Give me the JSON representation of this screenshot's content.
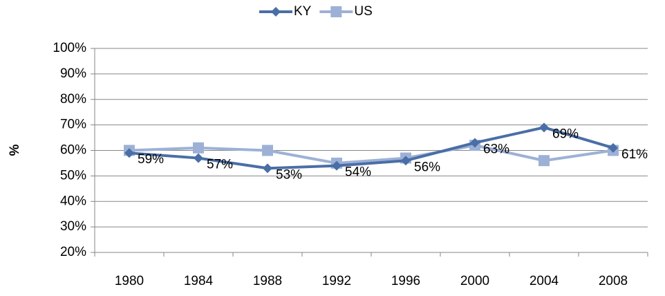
{
  "chart_data": {
    "type": "line",
    "y_label": "%",
    "categories": [
      "1980",
      "1984",
      "1988",
      "1992",
      "1996",
      "2000",
      "2004",
      "2008"
    ],
    "series": [
      {
        "name": "KY",
        "color": "#4a6ea6",
        "marker": "diamond",
        "values": [
          59,
          57,
          53,
          54,
          56,
          63,
          69,
          61
        ],
        "value_labels": [
          "59%",
          "57%",
          "53%",
          "54%",
          "56%",
          "63%",
          "69%",
          "61%"
        ]
      },
      {
        "name": "US",
        "color": "#9db1d6",
        "marker": "square",
        "values": [
          60,
          61,
          60,
          55,
          57,
          62,
          56,
          60
        ]
      }
    ],
    "ylim": [
      20,
      100
    ],
    "yticks": [
      {
        "value": 20,
        "label": "20%"
      },
      {
        "value": 30,
        "label": "30%"
      },
      {
        "value": 40,
        "label": "40%"
      },
      {
        "value": 50,
        "label": "50%"
      },
      {
        "value": 60,
        "label": "60%"
      },
      {
        "value": 70,
        "label": "70%"
      },
      {
        "value": 80,
        "label": "80%"
      },
      {
        "value": 90,
        "label": "90%"
      },
      {
        "value": 100,
        "label": "100%"
      }
    ],
    "grid": true,
    "legend": "top"
  }
}
